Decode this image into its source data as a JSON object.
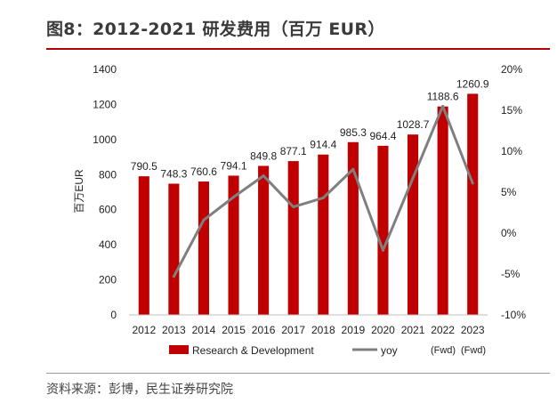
{
  "header": {
    "title": "图8：2012-2021 研发费用（百万 EUR）"
  },
  "footer": {
    "source": "资料来源：彭博，民生证券研究院"
  },
  "chart_data": {
    "type": "bar",
    "categories": [
      "2012",
      "2013",
      "2014",
      "2015",
      "2016",
      "2017",
      "2018",
      "2019",
      "2020",
      "2021",
      "2022",
      "2023"
    ],
    "ylabel": "百万EUR",
    "ylim": [
      0,
      1400
    ],
    "yticks": [
      "0",
      "200",
      "400",
      "600",
      "800",
      "1000",
      "1200",
      "1400"
    ],
    "y2lim": [
      -10,
      20
    ],
    "y2ticks": [
      "-10%",
      "-5%",
      "0%",
      "5%",
      "10%",
      "15%",
      "20%"
    ],
    "grid": false,
    "legend_position": "bottom",
    "series": [
      {
        "name": "Research & Development",
        "type": "bar",
        "color": "#c00000",
        "values": [
          790.5,
          748.3,
          760.6,
          794.1,
          849.8,
          877.1,
          914.4,
          985.3,
          964.4,
          1028.7,
          1188.6,
          1260.9
        ],
        "labels": [
          "790.5",
          "748.3",
          "760.6",
          "794.1",
          "849.8",
          "877.1",
          "914.4",
          "985.3",
          "964.4",
          "1028.7",
          "1188.6",
          "1260.9"
        ]
      },
      {
        "name": "yoy",
        "type": "line",
        "axis": "right",
        "color": "#7f7f7f",
        "values": [
          null,
          -5.3,
          1.6,
          4.4,
          7.0,
          3.2,
          4.3,
          7.8,
          -2.1,
          6.7,
          15.5,
          6.1
        ]
      }
    ],
    "annotations": [
      "(Fwd)",
      "(Fwd)"
    ]
  }
}
